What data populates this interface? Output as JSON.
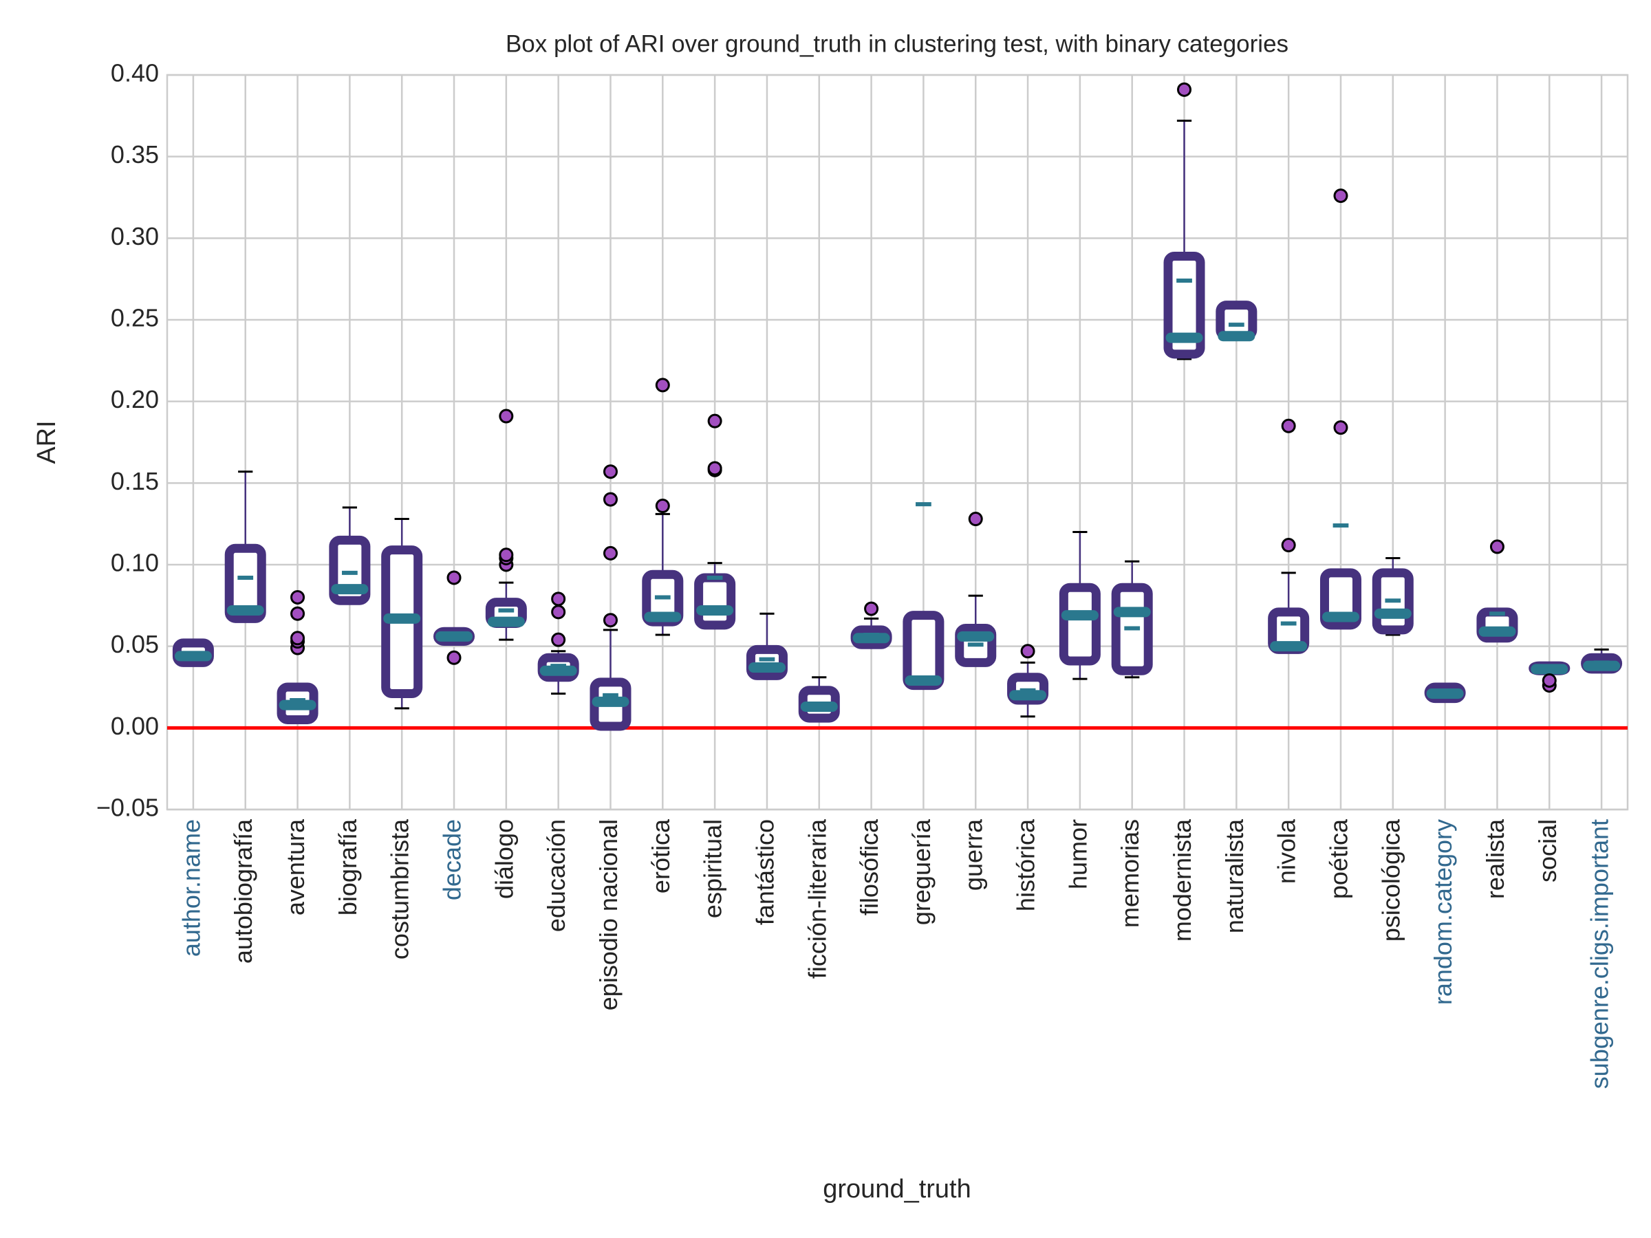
{
  "chart_data": {
    "type": "box",
    "title": "Box plot of ARI over ground_truth in clustering test, with binary categories",
    "x_label": "ground_truth",
    "y_label": "ARI",
    "ylim": [
      -0.05,
      0.4
    ],
    "yticks": [
      {
        "value": -0.05,
        "label": "−0.05"
      },
      {
        "value": 0,
        "label": "0.00"
      },
      {
        "value": 0.05,
        "label": "0.05"
      },
      {
        "value": 0.1,
        "label": "0.10"
      },
      {
        "value": 0.15,
        "label": "0.15"
      },
      {
        "value": 0.2,
        "label": "0.20"
      },
      {
        "value": 0.25,
        "label": "0.25"
      },
      {
        "value": 0.3,
        "label": "0.30"
      },
      {
        "value": 0.35,
        "label": "0.35"
      },
      {
        "value": 0.4,
        "label": "0.40"
      }
    ],
    "grid": true,
    "box_color": "#46327e",
    "median_color": "#2a788e",
    "flier_color": "#a24fc0",
    "reference_line": {
      "y": 0,
      "color": "#ff0000"
    },
    "categories": [
      "author.name",
      "autobiografía",
      "aventura",
      "biografía",
      "costumbrista",
      "decade",
      "diálogo",
      "educación",
      "episodio nacional",
      "erótica",
      "espiritual",
      "fantástico",
      "ficción-literaria",
      "filosófica",
      "greguería",
      "guerra",
      "histórica",
      "humor",
      "memorias",
      "modernista",
      "naturalista",
      "nivola",
      "poética",
      "psicológica",
      "random.category",
      "realista",
      "social",
      "subgenre.cligs.important"
    ],
    "category_colors": [
      "#31688e",
      "#222222",
      "#222222",
      "#222222",
      "#222222",
      "#31688e",
      "#222222",
      "#222222",
      "#222222",
      "#222222",
      "#222222",
      "#222222",
      "#222222",
      "#222222",
      "#222222",
      "#222222",
      "#222222",
      "#222222",
      "#222222",
      "#222222",
      "#222222",
      "#222222",
      "#222222",
      "#222222",
      "#31688e",
      "#222222",
      "#222222",
      "#31688e"
    ],
    "boxes": [
      {
        "whislo": 0.039,
        "q1": 0.04,
        "med": 0.044,
        "q3": 0.052,
        "whishi": 0.054,
        "mean": 0.044,
        "fliers": []
      },
      {
        "whislo": 0.066,
        "q1": 0.067,
        "med": 0.072,
        "q3": 0.11,
        "whishi": 0.157,
        "mean": 0.092,
        "fliers": []
      },
      {
        "whislo": 0.004,
        "q1": 0.005,
        "med": 0.014,
        "q3": 0.025,
        "whishi": 0.026,
        "mean": 0.017,
        "fliers": [
          0.049,
          0.053,
          0.055,
          0.07,
          0.08
        ]
      },
      {
        "whislo": 0.076,
        "q1": 0.078,
        "med": 0.085,
        "q3": 0.115,
        "whishi": 0.135,
        "mean": 0.095,
        "fliers": []
      },
      {
        "whislo": 0.012,
        "q1": 0.021,
        "med": 0.067,
        "q3": 0.109,
        "whishi": 0.128,
        "mean": 0.067,
        "fliers": []
      },
      {
        "whislo": 0.052,
        "q1": 0.053,
        "med": 0.056,
        "q3": 0.059,
        "whishi": 0.061,
        "mean": 0.056,
        "fliers": [
          0.043,
          0.092
        ]
      },
      {
        "whislo": 0.054,
        "q1": 0.064,
        "med": 0.065,
        "q3": 0.077,
        "whishi": 0.089,
        "mean": 0.072,
        "fliers": [
          0.1,
          0.104,
          0.106,
          0.191
        ]
      },
      {
        "whislo": 0.021,
        "q1": 0.031,
        "med": 0.035,
        "q3": 0.043,
        "whishi": 0.047,
        "mean": 0.038,
        "fliers": [
          0.054,
          0.071,
          0.079
        ]
      },
      {
        "whislo": 0.0,
        "q1": 0.001,
        "med": 0.016,
        "q3": 0.028,
        "whishi": 0.06,
        "mean": 0.02,
        "fliers": [
          0.066,
          0.107,
          0.14,
          0.157
        ]
      },
      {
        "whislo": 0.057,
        "q1": 0.065,
        "med": 0.068,
        "q3": 0.094,
        "whishi": 0.131,
        "mean": 0.08,
        "fliers": [
          0.136,
          0.21
        ]
      },
      {
        "whislo": 0.062,
        "q1": 0.063,
        "med": 0.072,
        "q3": 0.092,
        "whishi": 0.101,
        "mean": 0.092,
        "fliers": [
          0.158,
          0.159,
          0.188
        ]
      },
      {
        "whislo": 0.031,
        "q1": 0.032,
        "med": 0.037,
        "q3": 0.048,
        "whishi": 0.07,
        "mean": 0.042,
        "fliers": []
      },
      {
        "whislo": 0.005,
        "q1": 0.006,
        "med": 0.013,
        "q3": 0.023,
        "whishi": 0.031,
        "mean": 0.014,
        "fliers": []
      },
      {
        "whislo": 0.05,
        "q1": 0.051,
        "med": 0.055,
        "q3": 0.06,
        "whishi": 0.067,
        "mean": 0.057,
        "fliers": [
          0.073
        ]
      },
      {
        "whislo": 0.025,
        "q1": 0.026,
        "med": 0.029,
        "q3": 0.069,
        "whishi": 0.07,
        "mean": 0.137,
        "fliers": []
      },
      {
        "whislo": 0.039,
        "q1": 0.04,
        "med": 0.056,
        "q3": 0.061,
        "whishi": 0.081,
        "mean": 0.051,
        "fliers": [
          0.128
        ]
      },
      {
        "whislo": 0.007,
        "q1": 0.017,
        "med": 0.02,
        "q3": 0.031,
        "whishi": 0.04,
        "mean": 0.023,
        "fliers": [
          0.047
        ]
      },
      {
        "whislo": 0.03,
        "q1": 0.041,
        "med": 0.069,
        "q3": 0.086,
        "whishi": 0.12,
        "mean": 0.069,
        "fliers": []
      },
      {
        "whislo": 0.031,
        "q1": 0.035,
        "med": 0.071,
        "q3": 0.086,
        "whishi": 0.102,
        "mean": 0.061,
        "fliers": []
      },
      {
        "whislo": 0.226,
        "q1": 0.229,
        "med": 0.239,
        "q3": 0.289,
        "whishi": 0.372,
        "mean": 0.274,
        "fliers": [
          0.391
        ]
      },
      {
        "whislo": 0.238,
        "q1": 0.24,
        "med": 0.24,
        "q3": 0.259,
        "whishi": 0.259,
        "mean": 0.247,
        "fliers": []
      },
      {
        "whislo": 0.047,
        "q1": 0.048,
        "med": 0.05,
        "q3": 0.071,
        "whishi": 0.095,
        "mean": 0.064,
        "fliers": [
          0.112,
          0.185
        ]
      },
      {
        "whislo": 0.062,
        "q1": 0.063,
        "med": 0.068,
        "q3": 0.095,
        "whishi": 0.095,
        "mean": 0.124,
        "fliers": [
          0.184,
          0.326
        ]
      },
      {
        "whislo": 0.057,
        "q1": 0.06,
        "med": 0.07,
        "q3": 0.095,
        "whishi": 0.104,
        "mean": 0.078,
        "fliers": []
      },
      {
        "whislo": 0.018,
        "q1": 0.018,
        "med": 0.021,
        "q3": 0.025,
        "whishi": 0.026,
        "mean": 0.021,
        "fliers": []
      },
      {
        "whislo": 0.053,
        "q1": 0.055,
        "med": 0.059,
        "q3": 0.071,
        "whishi": 0.073,
        "mean": 0.07,
        "fliers": [
          0.111
        ]
      },
      {
        "whislo": 0.033,
        "q1": 0.035,
        "med": 0.036,
        "q3": 0.038,
        "whishi": 0.038,
        "mean": 0.037,
        "fliers": [
          0.026,
          0.029
        ]
      },
      {
        "whislo": 0.035,
        "q1": 0.036,
        "med": 0.038,
        "q3": 0.043,
        "whishi": 0.048,
        "mean": 0.04,
        "fliers": []
      }
    ]
  }
}
